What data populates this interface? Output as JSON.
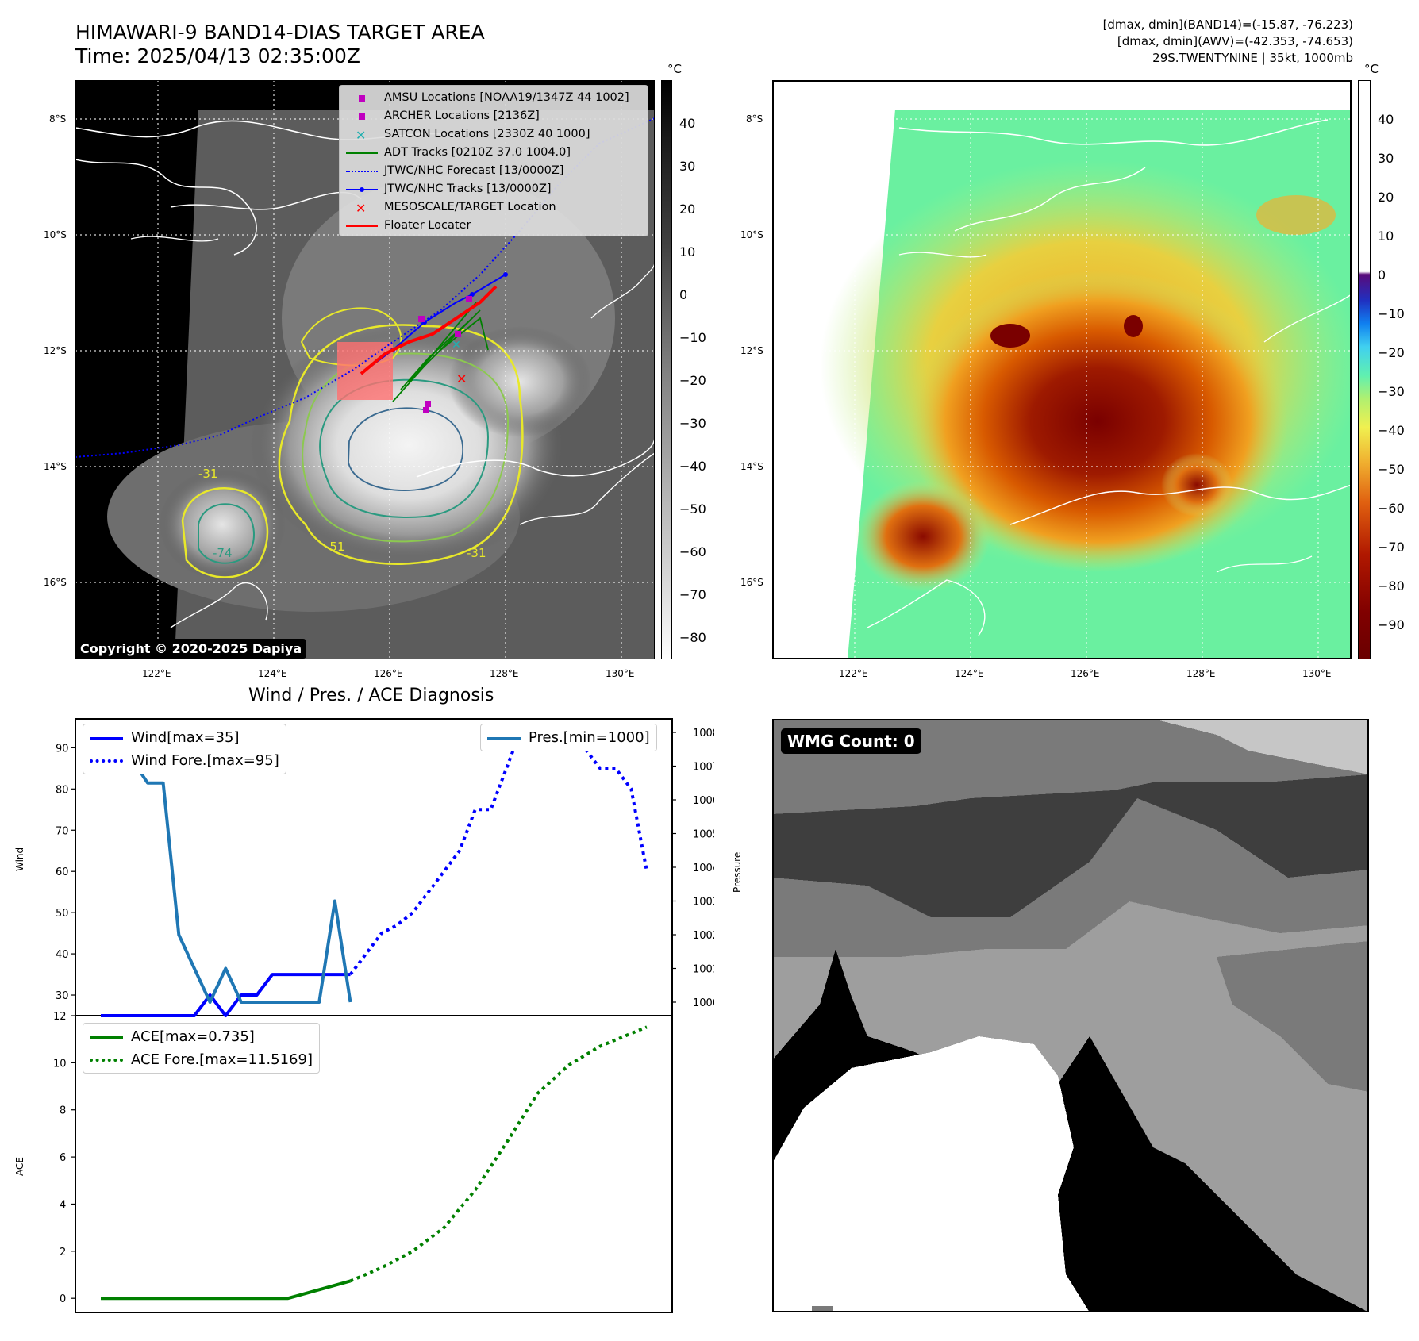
{
  "header": {
    "title_line1": "HIMAWARI-9 BAND14-DIAS TARGET AREA",
    "title_line2": "Time: 2025/04/13 02:35:00Z",
    "info_line1": "[dmax, dmin](BAND14)=(-15.87, -76.223)",
    "info_line2": "[dmax, dmin](AWV)=(-42.353, -74.653)",
    "info_line3": "29S.TWENTYNINE | 35kt, 1000mb"
  },
  "map": {
    "lat_labels": [
      "8°S",
      "10°S",
      "12°S",
      "14°S",
      "16°S"
    ],
    "lon_labels": [
      "122°E",
      "124°E",
      "126°E",
      "128°E",
      "130°E"
    ],
    "copyright": "Copyright © 2020-2025 Dapiya",
    "contour_labels": [
      "-31",
      "-51",
      "-74",
      "-31"
    ],
    "legend": [
      {
        "label": "AMSU Locations [NOAA19/1347Z 44 1002]",
        "symbol": "square",
        "color": "#c000c0"
      },
      {
        "label": "ARCHER Locations [2136Z]",
        "symbol": "square",
        "color": "#c000c0"
      },
      {
        "label": "SATCON Locations [2330Z 40 1000]",
        "symbol": "x",
        "color": "#20b0b0"
      },
      {
        "label": "ADT Tracks [0210Z 37.0 1004.0]",
        "symbol": "line",
        "color": "#008000"
      },
      {
        "label": "JTWC/NHC Forecast [13/0000Z]",
        "symbol": "dotted",
        "color": "#0000ff"
      },
      {
        "label": "JTWC/NHC Tracks [13/0000Z]",
        "symbol": "line-dot",
        "color": "#0000ff"
      },
      {
        "label": "MESOSCALE/TARGET Location",
        "symbol": "x",
        "color": "#ff0000"
      },
      {
        "label": "Floater Locater",
        "symbol": "line",
        "color": "#ff0000"
      }
    ],
    "colorbar_unit": "°C",
    "colorbar_ticks": [
      "40",
      "30",
      "20",
      "10",
      "0",
      "−10",
      "−20",
      "−30",
      "−40",
      "−50",
      "−60",
      "−70",
      "−80"
    ]
  },
  "awv": {
    "lat_labels": [
      "8°S",
      "10°S",
      "12°S",
      "14°S",
      "16°S"
    ],
    "lon_labels": [
      "122°E",
      "124°E",
      "126°E",
      "128°E",
      "130°E"
    ],
    "colorbar_unit": "°C",
    "colorbar_ticks": [
      "40",
      "30",
      "20",
      "10",
      "0",
      "−10",
      "−20",
      "−30",
      "−40",
      "−50",
      "−60",
      "−70",
      "−80",
      "−90"
    ]
  },
  "chart_data": [
    {
      "type": "line",
      "title": "Wind / Pres. / ACE Diagnosis",
      "ylabel": "Wind",
      "ylabel_right": "Pressure",
      "y_ticks": [
        30,
        40,
        50,
        60,
        70,
        80,
        90
      ],
      "y_right_ticks": [
        1000,
        1001,
        1002,
        1003,
        1004,
        1005,
        1006,
        1007,
        1008
      ],
      "ylim": [
        25,
        97
      ],
      "ylim_right": [
        999.6,
        1008.4
      ],
      "series": [
        {
          "name": "Wind[max=35]",
          "axis": "left",
          "style": "solid",
          "color": "#0000ff",
          "x": [
            0,
            1,
            2,
            3,
            4,
            5,
            6,
            7,
            8,
            9,
            10,
            11,
            12,
            13,
            14,
            15,
            16
          ],
          "y": [
            25,
            25,
            25,
            25,
            25,
            25,
            25,
            30,
            25,
            30,
            30,
            35,
            35,
            35,
            35,
            35,
            35
          ]
        },
        {
          "name": "Wind Fore.[max=95]",
          "axis": "left",
          "style": "dotted",
          "color": "#0000ff",
          "x": [
            16,
            17,
            18,
            19,
            20,
            21,
            22,
            23,
            24,
            25,
            26,
            27,
            28,
            29,
            30,
            31,
            32,
            33,
            34,
            35
          ],
          "y": [
            35,
            40,
            45,
            47,
            50,
            55,
            60,
            65,
            75,
            75,
            85,
            95,
            95,
            93,
            93,
            90,
            85,
            85,
            80,
            60
          ]
        },
        {
          "name": "Pres.[min=1000]",
          "axis": "right",
          "style": "solid",
          "color": "#1f77b4",
          "x": [
            0,
            1,
            2,
            3,
            4,
            5,
            6,
            7,
            8,
            9,
            10,
            11,
            12,
            13,
            14,
            15,
            16
          ],
          "y": [
            1008,
            1007.2,
            1007.2,
            1006.5,
            1006.5,
            1002,
            1001,
            1000,
            1001,
            1000,
            1000,
            1000,
            1000,
            1000,
            1000,
            1003,
            1000
          ]
        }
      ]
    },
    {
      "type": "line",
      "ylabel": "ACE",
      "y_ticks": [
        0,
        2,
        4,
        6,
        8,
        10,
        12
      ],
      "ylim": [
        -0.6,
        12
      ],
      "series": [
        {
          "name": "ACE[max=0.735]",
          "style": "solid",
          "color": "#008000",
          "x": [
            0,
            4,
            8,
            12,
            16
          ],
          "y": [
            0,
            0,
            0,
            0,
            0.735
          ]
        },
        {
          "name": "ACE Fore.[max=11.5169]",
          "style": "dotted",
          "color": "#008000",
          "x": [
            16,
            18,
            20,
            22,
            24,
            26,
            28,
            30,
            32,
            35
          ],
          "y": [
            0.735,
            1.3,
            2.0,
            3.0,
            4.6,
            6.6,
            8.7,
            9.9,
            10.7,
            11.5169
          ]
        }
      ]
    }
  ],
  "wmg": {
    "label": "WMG Count: 0"
  }
}
